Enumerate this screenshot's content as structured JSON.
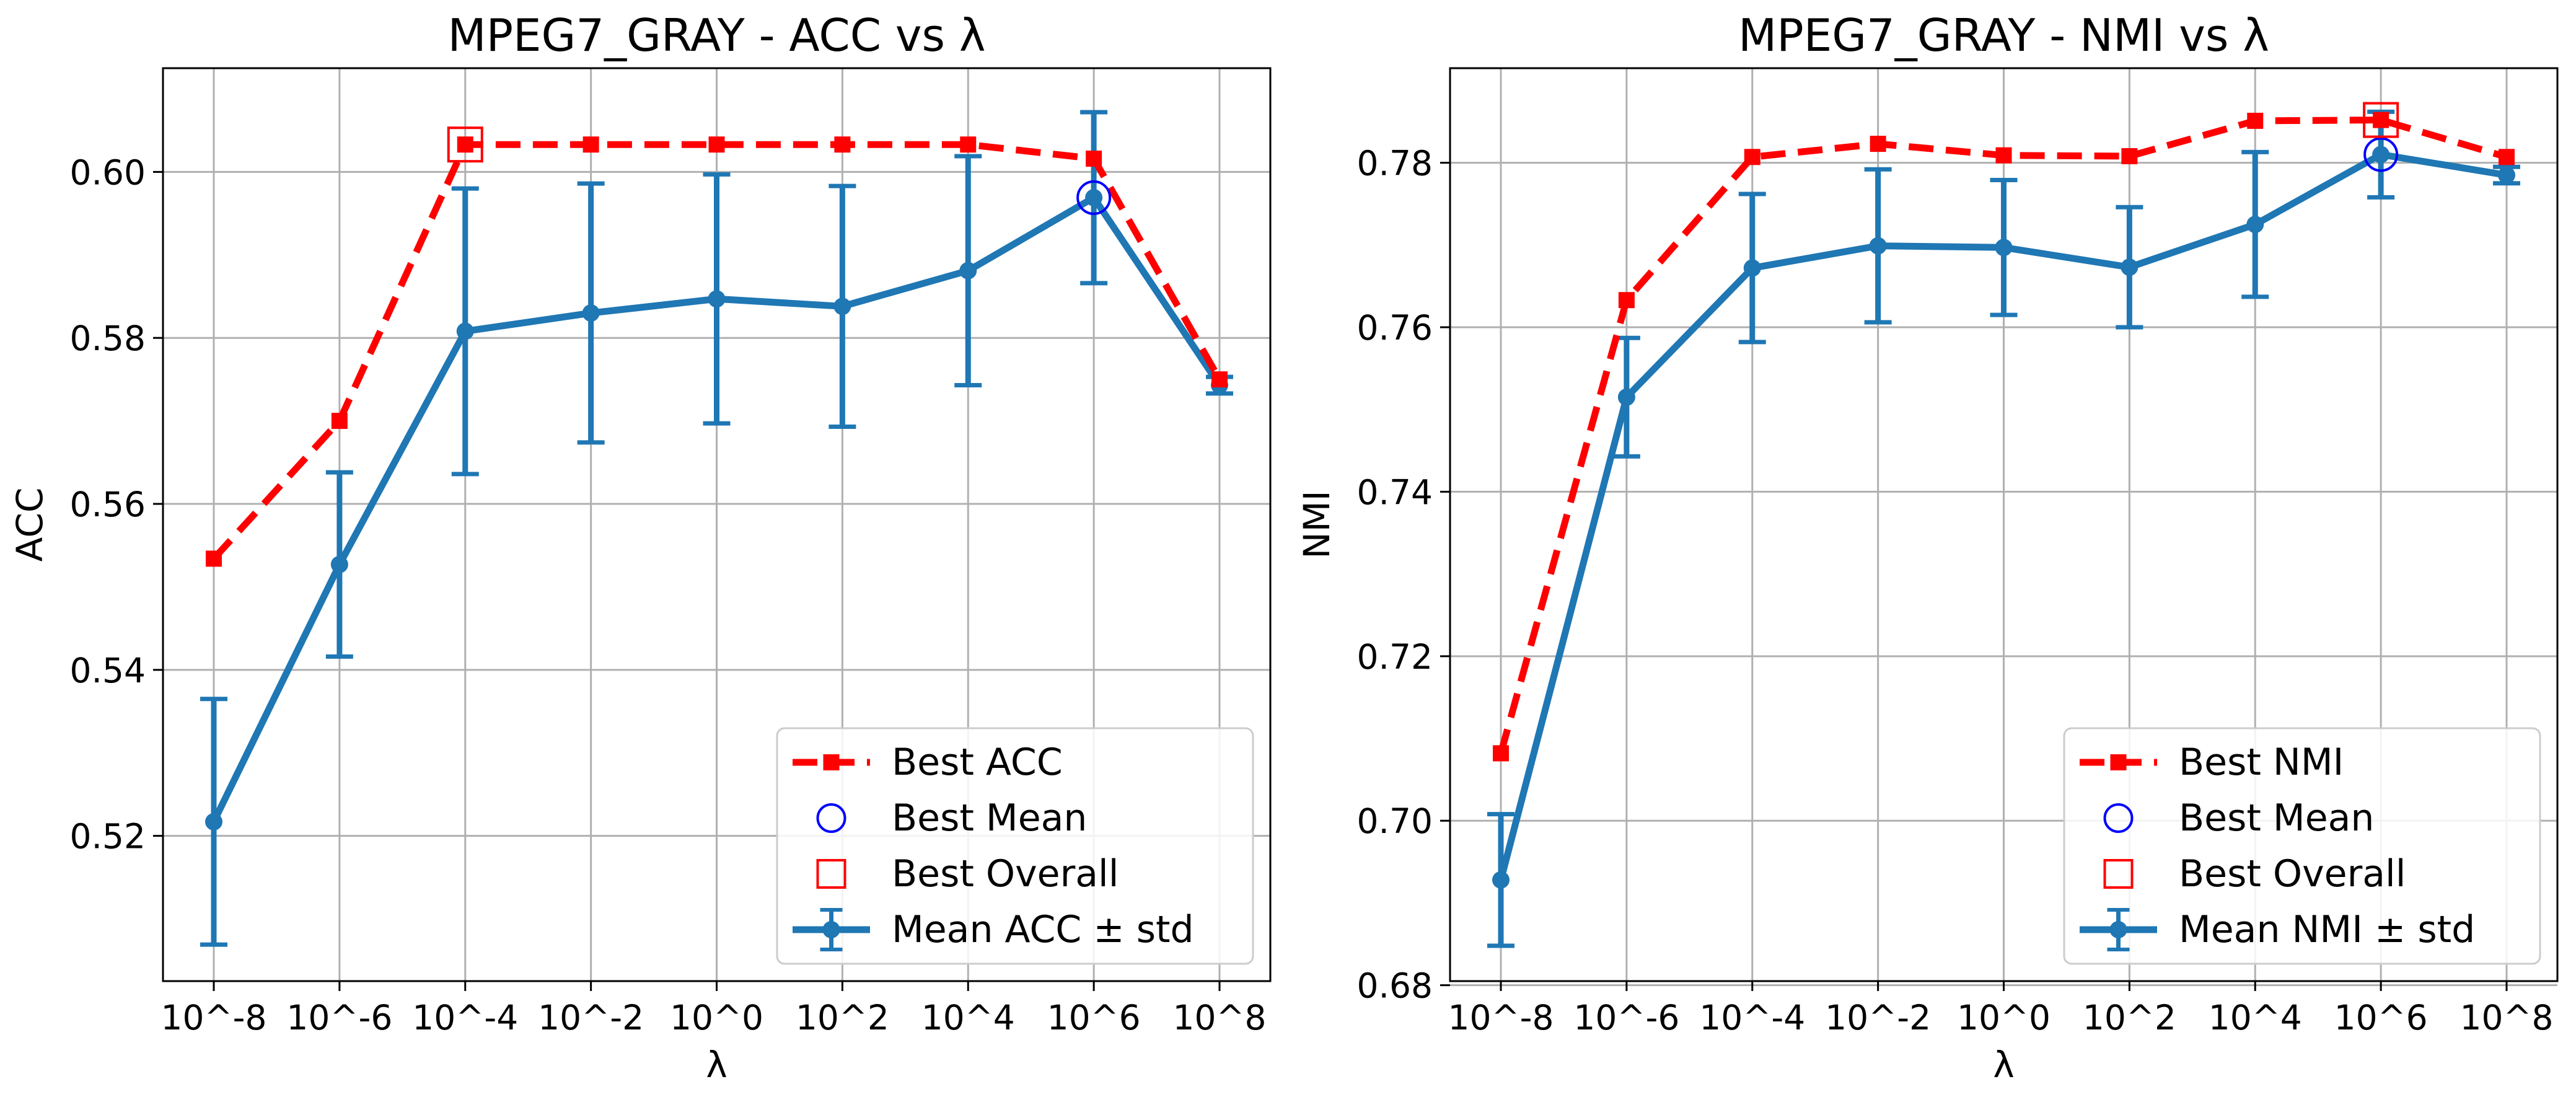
{
  "chart_data": [
    {
      "type": "line",
      "title": "MPEG7_GRAY - ACC vs λ",
      "xlabel": "λ",
      "ylabel": "ACC",
      "categories": [
        "10^-8",
        "10^-6",
        "10^-4",
        "10^-2",
        "10^0",
        "10^2",
        "10^4",
        "10^6",
        "10^8"
      ],
      "ylim": [
        0.5025,
        0.6125
      ],
      "yticks": [
        "0.52",
        "0.54",
        "0.56",
        "0.58",
        "0.60"
      ],
      "ytick_values": [
        0.52,
        0.54,
        0.56,
        0.58,
        0.6
      ],
      "grid": true,
      "legend_position": "lower-right",
      "series": [
        {
          "name": "Best ACC",
          "style": "dashed-square",
          "color": "#ff0000",
          "values": [
            0.5534,
            0.57,
            0.6033,
            0.6033,
            0.6033,
            0.6033,
            0.6033,
            0.6016,
            0.575
          ]
        },
        {
          "name": "Mean ACC ± std",
          "style": "solid-errorbar",
          "color": "#1f77b4",
          "values": [
            0.5217,
            0.5527,
            0.5808,
            0.583,
            0.5847,
            0.5838,
            0.5881,
            0.5969,
            0.5743
          ],
          "std": [
            0.0148,
            0.0111,
            0.0172,
            0.0156,
            0.015,
            0.0145,
            0.0138,
            0.0103,
            0.001
          ]
        }
      ],
      "best_mean": {
        "name": "Best Mean",
        "x": "10^6",
        "value": 0.5969,
        "color": "#0000ff"
      },
      "best_overall": {
        "name": "Best Overall",
        "x": "10^-4",
        "value": 0.6033,
        "color": "#ff0000"
      },
      "legend": [
        "Best ACC",
        "Best Mean",
        "Best Overall",
        "Mean ACC ± std"
      ]
    },
    {
      "type": "line",
      "title": "MPEG7_GRAY - NMI vs λ",
      "xlabel": "λ",
      "ylabel": "NMI",
      "categories": [
        "10^-8",
        "10^-6",
        "10^-4",
        "10^-2",
        "10^0",
        "10^2",
        "10^4",
        "10^6",
        "10^8"
      ],
      "ylim": [
        0.6805,
        0.7915
      ],
      "yticks": [
        "0.68",
        "0.70",
        "0.72",
        "0.74",
        "0.76",
        "0.78"
      ],
      "ytick_values": [
        0.68,
        0.7,
        0.72,
        0.74,
        0.76,
        0.78
      ],
      "grid": true,
      "legend_position": "lower-right",
      "series": [
        {
          "name": "Best NMI",
          "style": "dashed-square",
          "color": "#ff0000",
          "values": [
            0.7082,
            0.7633,
            0.7807,
            0.7823,
            0.7809,
            0.7808,
            0.7851,
            0.7852,
            0.7807
          ]
        },
        {
          "name": "Mean NMI ± std",
          "style": "solid-errorbar",
          "color": "#1f77b4",
          "values": [
            0.6928,
            0.7515,
            0.7672,
            0.7699,
            0.7697,
            0.7673,
            0.7725,
            0.781,
            0.7785
          ],
          "std": [
            0.008,
            0.0072,
            0.009,
            0.0093,
            0.0082,
            0.0073,
            0.0088,
            0.0052,
            0.001
          ]
        }
      ],
      "best_mean": {
        "name": "Best Mean",
        "x": "10^6",
        "value": 0.781,
        "color": "#0000ff"
      },
      "best_overall": {
        "name": "Best Overall",
        "x": "10^6",
        "value": 0.7852,
        "color": "#ff0000"
      },
      "legend": [
        "Best NMI",
        "Best Mean",
        "Best Overall",
        "Mean NMI ± std"
      ]
    }
  ]
}
